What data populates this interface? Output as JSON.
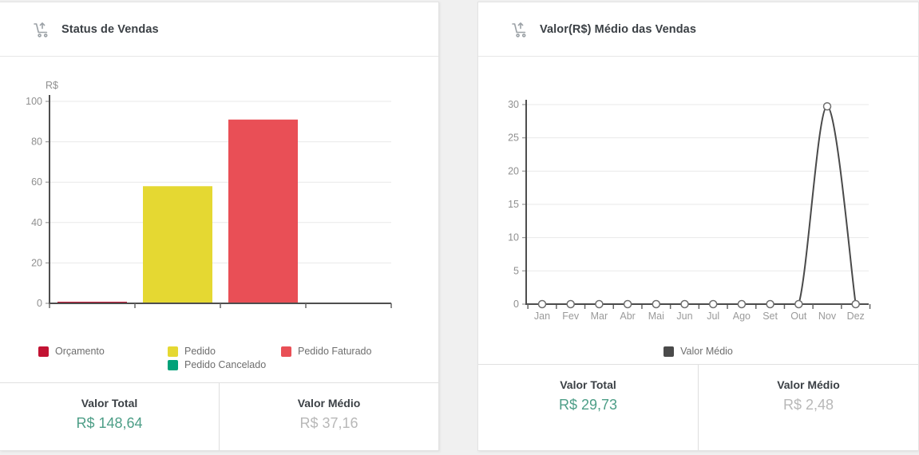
{
  "page": {
    "background": "#f0f0f0"
  },
  "icons": {
    "header_icon": "cart-arrow-up-icon"
  },
  "left_card": {
    "title": "Status de Vendas",
    "footer": {
      "total_label": "Valor Total",
      "total_value": "R$ 148,64",
      "avg_label": "Valor Médio",
      "avg_value": "R$ 37,16"
    }
  },
  "right_card": {
    "title": "Valor(R$) Médio das Vendas",
    "footer": {
      "total_label": "Valor Total",
      "total_value": "R$ 29,73",
      "avg_label": "Valor Médio",
      "avg_value": "R$ 2,48"
    }
  },
  "colors": {
    "total_value": "#4d9e87",
    "avg_value": "#b8b8b8",
    "axis_dark": "#4e4e4e",
    "grid": "#e9e9e9",
    "axis_text": "#8f8f8f",
    "title_text": "#3b4045",
    "icon_gray": "#9ba1a6"
  },
  "chart_data": [
    {
      "type": "bar",
      "title": "Status de Vendas",
      "ylabel": "R$",
      "categories": [
        "Orçamento",
        "Pedido",
        "Pedido Faturado",
        "Pedido Cancelado"
      ],
      "values": [
        0.6,
        58,
        91,
        0
      ],
      "colors": [
        "#c21333",
        "#e5d832",
        "#e94f56",
        "#00a279"
      ],
      "ylim": [
        0,
        100
      ],
      "yticks": [
        0,
        20,
        40,
        60,
        80,
        100
      ],
      "grid": true,
      "legend_position": "bottom"
    },
    {
      "type": "line",
      "title": "Valor(R$) Médio das Vendas",
      "x": [
        "Jan",
        "Fev",
        "Mar",
        "Abr",
        "Mai",
        "Jun",
        "Jul",
        "Ago",
        "Set",
        "Out",
        "Nov",
        "Dez"
      ],
      "series": [
        {
          "name": "Valor Médio",
          "color": "#4a4a4a",
          "values": [
            0,
            0,
            0,
            0,
            0,
            0,
            0,
            0,
            0,
            0,
            29.73,
            0
          ]
        }
      ],
      "ylim": [
        0,
        30
      ],
      "yticks": [
        0,
        5,
        10,
        15,
        20,
        25,
        30
      ],
      "grid": true,
      "legend_position": "bottom",
      "marker": "open-circle"
    }
  ]
}
